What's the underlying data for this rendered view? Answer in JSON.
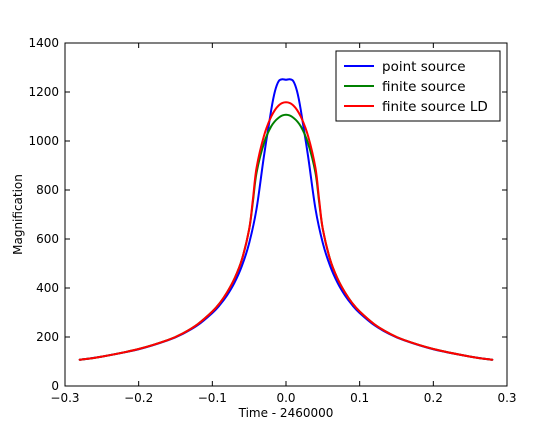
{
  "chart_data": {
    "type": "line",
    "title": "",
    "xlabel": "Time - 2460000",
    "ylabel": "Magnification",
    "xlim": [
      -0.3,
      0.3
    ],
    "ylim": [
      0,
      1400
    ],
    "xticks": [
      -0.3,
      -0.2,
      -0.1,
      0.0,
      0.1,
      0.2,
      0.3
    ],
    "xtick_labels": [
      "−0.3",
      "−0.2",
      "−0.1",
      "0.0",
      "0.1",
      "0.2",
      "0.3"
    ],
    "yticks": [
      0,
      200,
      400,
      600,
      800,
      1000,
      1200,
      1400
    ],
    "ytick_labels": [
      "0",
      "200",
      "400",
      "600",
      "800",
      "1000",
      "1200",
      "1400"
    ],
    "grid": false,
    "legend_position": "top-right",
    "series": [
      {
        "name": "point source",
        "color": "#0000ff",
        "x": [
          -0.28,
          -0.25,
          -0.2,
          -0.16,
          -0.14,
          -0.12,
          -0.1,
          -0.09,
          -0.08,
          -0.07,
          -0.06,
          -0.05,
          -0.04,
          -0.03,
          -0.02,
          -0.015,
          -0.01,
          -0.005,
          0.0,
          0.005,
          0.01,
          0.015,
          0.02,
          0.03,
          0.04,
          0.05,
          0.06,
          0.07,
          0.08,
          0.09,
          0.1,
          0.12,
          0.14,
          0.16,
          0.2,
          0.25,
          0.28
        ],
        "y": [
          107,
          120,
          150,
          187,
          213,
          248,
          298,
          330,
          370,
          421,
          489,
          583,
          723,
          937,
          1128,
          1203,
          1244,
          1252,
          1250,
          1252,
          1244,
          1203,
          1128,
          937,
          723,
          583,
          489,
          421,
          370,
          330,
          298,
          248,
          213,
          187,
          150,
          120,
          107
        ]
      },
      {
        "name": "finite source",
        "color": "#008000",
        "x": [
          -0.28,
          -0.25,
          -0.2,
          -0.16,
          -0.14,
          -0.12,
          -0.1,
          -0.09,
          -0.08,
          -0.07,
          -0.06,
          -0.05,
          -0.045,
          -0.04,
          -0.03,
          -0.02,
          -0.01,
          0.0,
          0.01,
          0.02,
          0.03,
          0.04,
          0.045,
          0.05,
          0.06,
          0.07,
          0.08,
          0.09,
          0.1,
          0.12,
          0.14,
          0.16,
          0.2,
          0.25,
          0.28
        ],
        "y": [
          107,
          120,
          151,
          188,
          215,
          252,
          304,
          338,
          382,
          438,
          515,
          640,
          750,
          870,
          990,
          1060,
          1095,
          1107,
          1095,
          1060,
          990,
          870,
          750,
          640,
          515,
          438,
          382,
          338,
          304,
          252,
          215,
          188,
          151,
          120,
          107
        ]
      },
      {
        "name": "finite source LD",
        "color": "#ff0000",
        "x": [
          -0.28,
          -0.25,
          -0.2,
          -0.16,
          -0.14,
          -0.12,
          -0.1,
          -0.09,
          -0.08,
          -0.07,
          -0.06,
          -0.05,
          -0.045,
          -0.04,
          -0.03,
          -0.02,
          -0.01,
          0.0,
          0.01,
          0.02,
          0.03,
          0.04,
          0.045,
          0.05,
          0.06,
          0.07,
          0.08,
          0.09,
          0.1,
          0.12,
          0.14,
          0.16,
          0.2,
          0.25,
          0.28
        ],
        "y": [
          107,
          120,
          151,
          188,
          215,
          252,
          304,
          338,
          382,
          438,
          515,
          640,
          760,
          890,
          1020,
          1100,
          1145,
          1158,
          1145,
          1100,
          1020,
          890,
          760,
          640,
          515,
          438,
          382,
          338,
          304,
          252,
          215,
          188,
          151,
          120,
          107
        ]
      }
    ]
  }
}
